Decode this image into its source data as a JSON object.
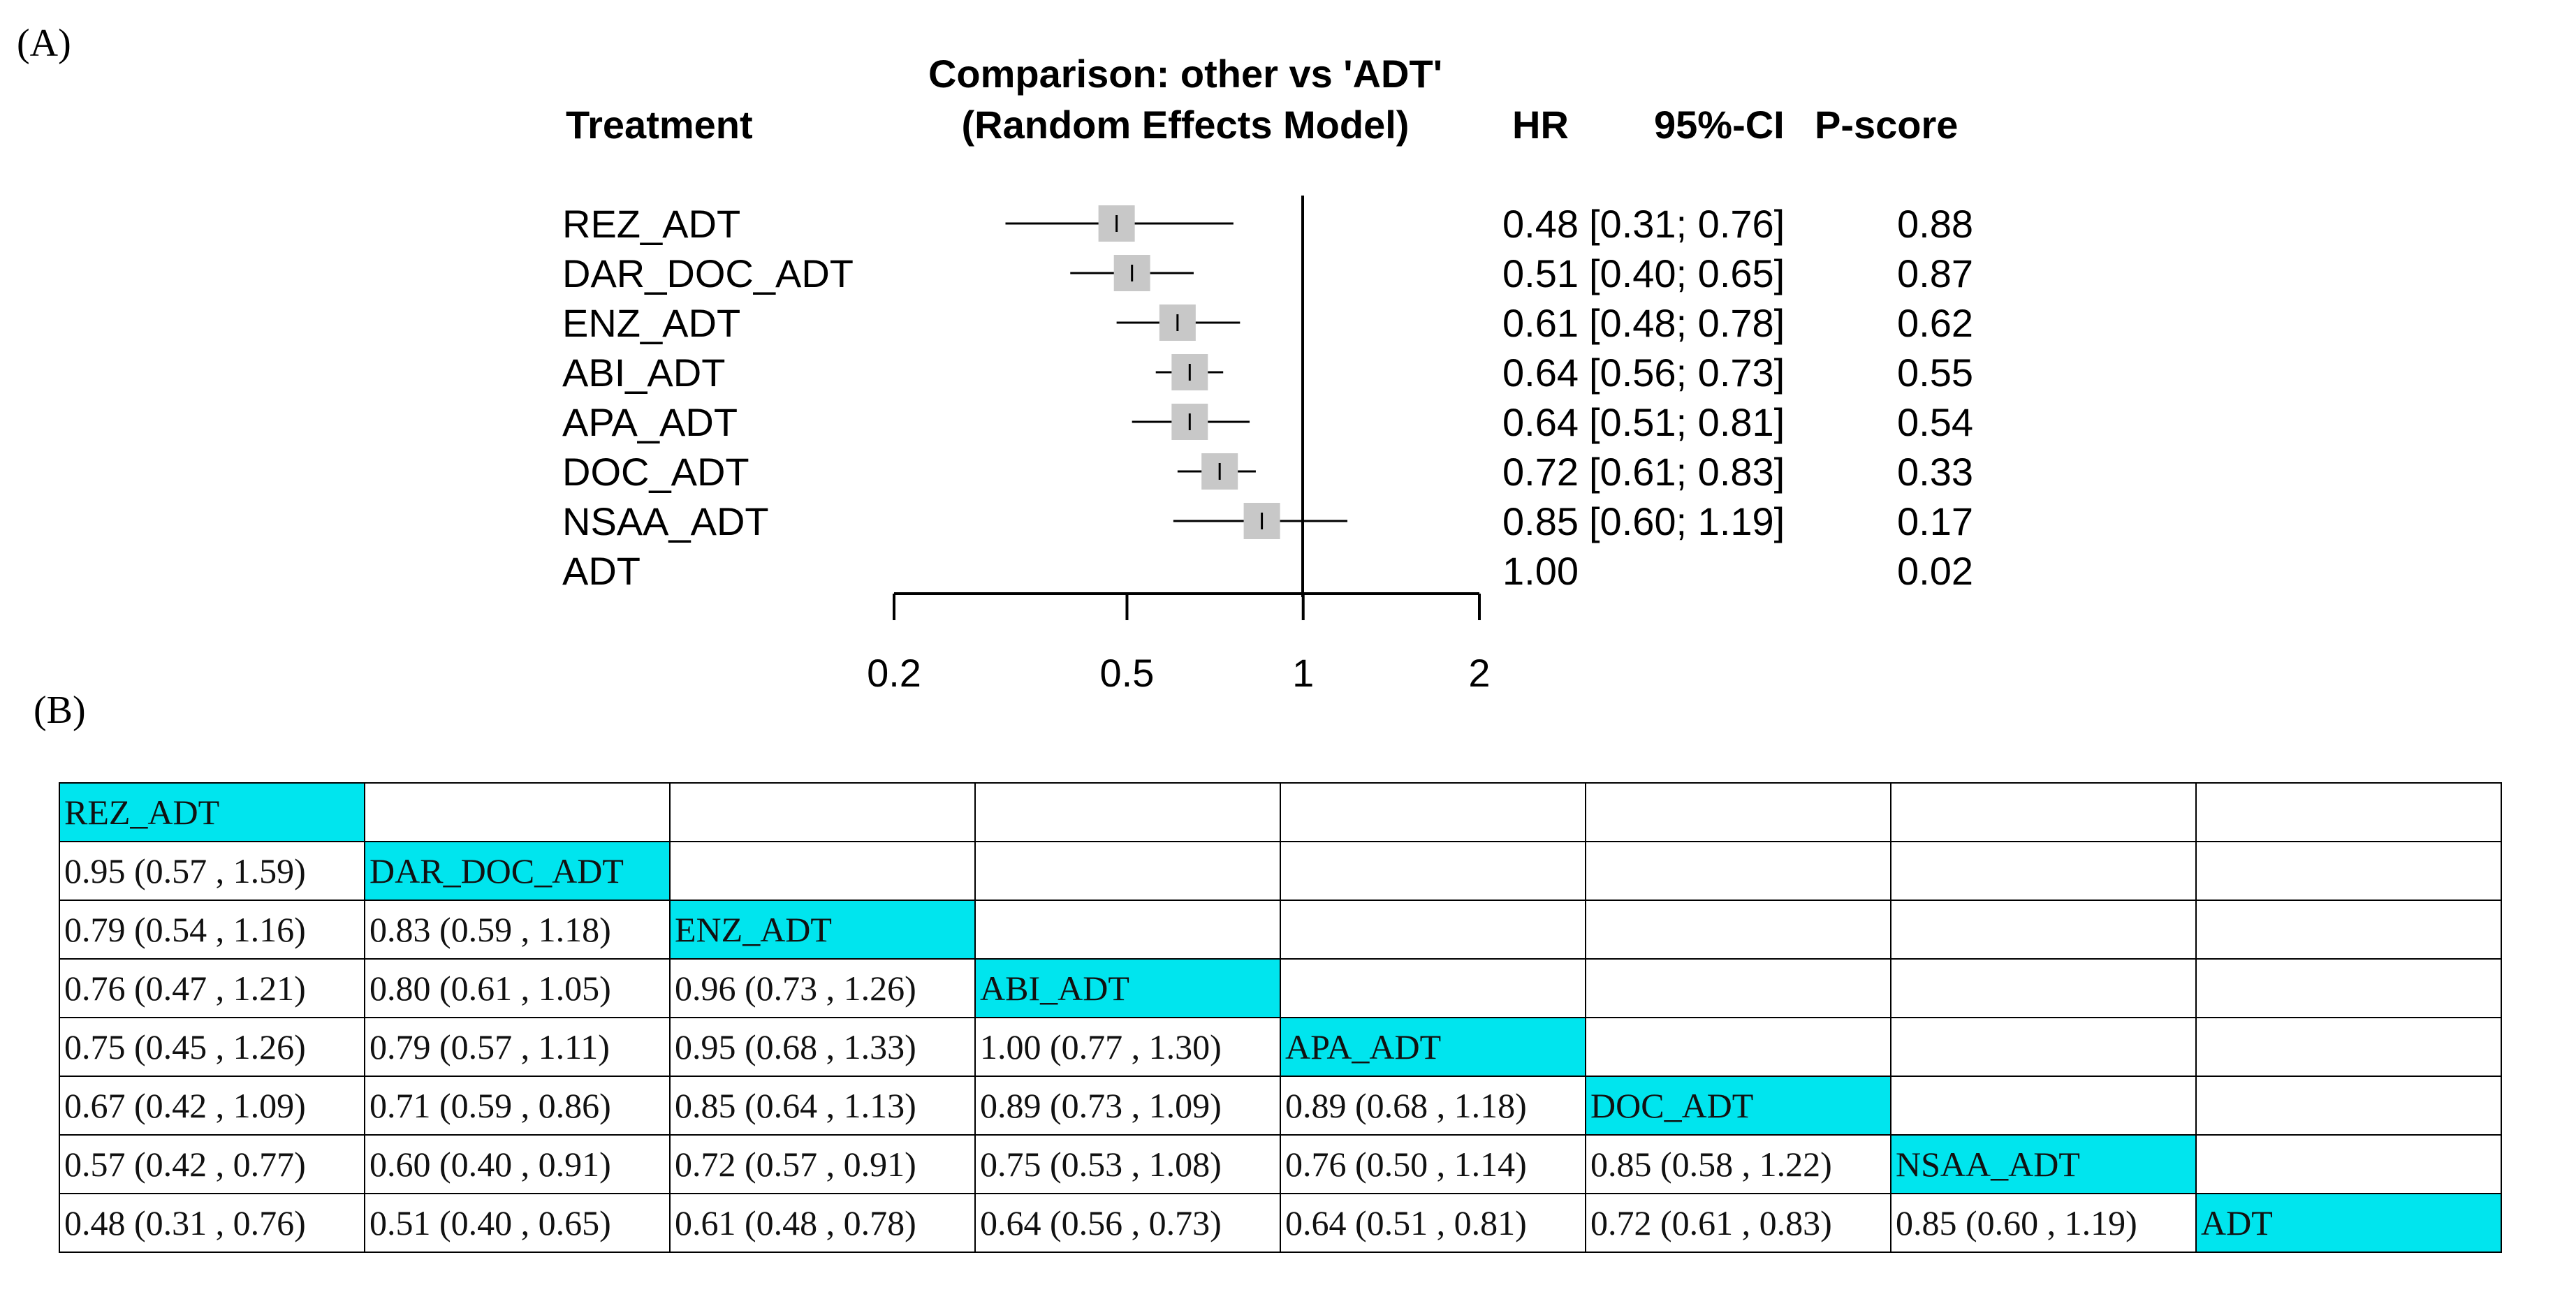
{
  "panels": {
    "a_label": "(A)",
    "b_label": "(B)"
  },
  "forest": {
    "title_line1": "Comparison: other vs 'ADT'",
    "title_line2": "(Random Effects Model)",
    "col_treatment": "Treatment",
    "col_hr": "HR",
    "col_ci": "95%-CI",
    "col_pscore": "P-score",
    "rows": [
      {
        "treatment": "REZ_ADT",
        "hr": "0.48",
        "ci": "[0.31; 0.76]",
        "pscore": "0.88"
      },
      {
        "treatment": "DAR_DOC_ADT",
        "hr": "0.51",
        "ci": "[0.40; 0.65]",
        "pscore": "0.87"
      },
      {
        "treatment": "ENZ_ADT",
        "hr": "0.61",
        "ci": "[0.48; 0.78]",
        "pscore": "0.62"
      },
      {
        "treatment": "ABI_ADT",
        "hr": "0.64",
        "ci": "[0.56; 0.73]",
        "pscore": "0.55"
      },
      {
        "treatment": "APA_ADT",
        "hr": "0.64",
        "ci": "[0.51; 0.81]",
        "pscore": "0.54"
      },
      {
        "treatment": "DOC_ADT",
        "hr": "0.72",
        "ci": "[0.61; 0.83]",
        "pscore": "0.33"
      },
      {
        "treatment": "NSAA_ADT",
        "hr": "0.85",
        "ci": "[0.60; 1.19]",
        "pscore": "0.17"
      },
      {
        "treatment": "ADT",
        "hr": "1.00",
        "ci": "",
        "pscore": "0.02"
      }
    ],
    "axis_ticks": [
      "0.2",
      "0.5",
      "1",
      "2"
    ]
  },
  "chart_data": {
    "type": "forest",
    "title": "Comparison: other vs 'ADT' (Random Effects Model)",
    "x_scale": "log",
    "xlim": [
      0.2,
      2
    ],
    "x_ticks": [
      0.2,
      0.5,
      1,
      2
    ],
    "reference_line": 1,
    "series": [
      {
        "treatment": "REZ_ADT",
        "hr": 0.48,
        "lower": 0.31,
        "upper": 0.76,
        "pscore": 0.88
      },
      {
        "treatment": "DAR_DOC_ADT",
        "hr": 0.51,
        "lower": 0.4,
        "upper": 0.65,
        "pscore": 0.87
      },
      {
        "treatment": "ENZ_ADT",
        "hr": 0.61,
        "lower": 0.48,
        "upper": 0.78,
        "pscore": 0.62
      },
      {
        "treatment": "ABI_ADT",
        "hr": 0.64,
        "lower": 0.56,
        "upper": 0.73,
        "pscore": 0.55
      },
      {
        "treatment": "APA_ADT",
        "hr": 0.64,
        "lower": 0.51,
        "upper": 0.81,
        "pscore": 0.54
      },
      {
        "treatment": "DOC_ADT",
        "hr": 0.72,
        "lower": 0.61,
        "upper": 0.83,
        "pscore": 0.33
      },
      {
        "treatment": "NSAA_ADT",
        "hr": 0.85,
        "lower": 0.6,
        "upper": 1.19,
        "pscore": 0.17
      },
      {
        "treatment": "ADT",
        "hr": 1.0,
        "lower": null,
        "upper": null,
        "pscore": 0.02
      }
    ],
    "colors": {
      "box": "#c8c8c8",
      "line": "#000000"
    }
  },
  "league_table": {
    "highlight_color": "#00e5ee",
    "rows": [
      [
        "REZ_ADT",
        "",
        "",
        "",
        "",
        "",
        "",
        ""
      ],
      [
        "0.95 (0.57 , 1.59)",
        "DAR_DOC_ADT",
        "",
        "",
        "",
        "",
        "",
        ""
      ],
      [
        "0.79 (0.54 , 1.16)",
        "0.83 (0.59 , 1.18)",
        "ENZ_ADT",
        "",
        "",
        "",
        "",
        ""
      ],
      [
        "0.76 (0.47 , 1.21)",
        "0.80 (0.61 , 1.05)",
        "0.96 (0.73 , 1.26)",
        "ABI_ADT",
        "",
        "",
        "",
        ""
      ],
      [
        "0.75 (0.45 , 1.26)",
        "0.79 (0.57 , 1.11)",
        "0.95 (0.68 , 1.33)",
        "1.00 (0.77 , 1.30)",
        "APA_ADT",
        "",
        "",
        ""
      ],
      [
        "0.67 (0.42 , 1.09)",
        "0.71 (0.59 , 0.86)",
        "0.85 (0.64 , 1.13)",
        "0.89 (0.73 , 1.09)",
        "0.89 (0.68 , 1.18)",
        "DOC_ADT",
        "",
        ""
      ],
      [
        "0.57 (0.42 , 0.77)",
        "0.60 (0.40 , 0.91)",
        "0.72 (0.57 , 0.91)",
        "0.75 (0.53 , 1.08)",
        "0.76 (0.50 , 1.14)",
        "0.85 (0.58 , 1.22)",
        "NSAA_ADT",
        ""
      ],
      [
        "0.48 (0.31 , 0.76)",
        "0.51 (0.40 , 0.65)",
        "0.61 (0.48 , 0.78)",
        "0.64 (0.56 , 0.73)",
        "0.64 (0.51 , 0.81)",
        "0.72 (0.61 , 0.83)",
        "0.85 (0.60 , 1.19)",
        "ADT"
      ]
    ]
  }
}
